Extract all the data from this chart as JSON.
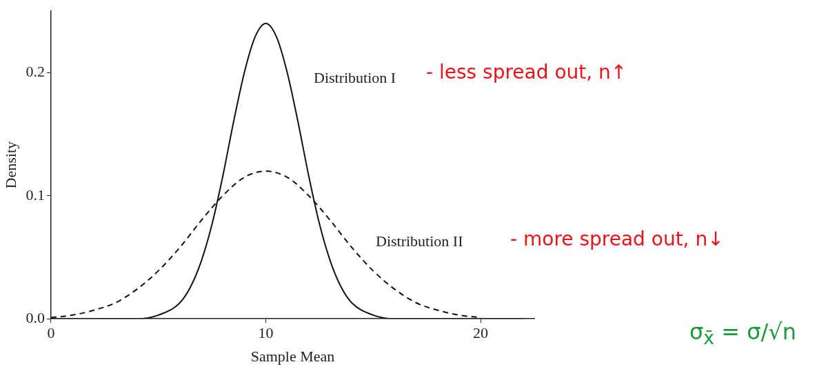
{
  "chart_data": {
    "type": "line",
    "xlabel": "Sample Mean",
    "ylabel": "Density",
    "xlim": [
      0,
      22.5
    ],
    "xticks": [
      0,
      10,
      20
    ],
    "ylim": [
      0,
      0.25
    ],
    "yticks": [
      {
        "value": 0,
        "label": "0.0"
      },
      {
        "value": 0.1,
        "label": "0.1"
      },
      {
        "value": 0.2,
        "label": "0.2"
      }
    ],
    "grid": false,
    "legend": false,
    "marker": "none",
    "series": [
      {
        "color": "#111111",
        "line_style": "solid",
        "x": [
          0,
          2,
          4,
          5,
          6,
          6.5,
          7,
          7.5,
          8,
          8.5,
          9,
          9.5,
          10,
          10.5,
          11,
          11.5,
          12,
          12.5,
          13,
          13.5,
          14,
          15,
          16,
          18,
          20,
          22
        ],
        "values": [
          0,
          0,
          0,
          0.003,
          0.013,
          0.026,
          0.047,
          0.077,
          0.116,
          0.16,
          0.2,
          0.229,
          0.24,
          0.229,
          0.2,
          0.16,
          0.116,
          0.077,
          0.047,
          0.026,
          0.013,
          0.003,
          0,
          0,
          0,
          0
        ]
      },
      {
        "color": "#111111",
        "line_style": "dashed",
        "x": [
          0,
          1,
          2,
          3,
          4,
          5,
          6,
          7,
          8,
          9,
          10,
          11,
          12,
          13,
          14,
          15,
          16,
          17,
          18,
          19,
          20
        ],
        "values": [
          0.001,
          0.003,
          0.007,
          0.013,
          0.024,
          0.039,
          0.058,
          0.08,
          0.1,
          0.115,
          0.12,
          0.115,
          0.1,
          0.08,
          0.058,
          0.039,
          0.024,
          0.013,
          0.007,
          0.003,
          0.001
        ]
      }
    ],
    "annotations": [
      "Distribution I",
      "Distribution II",
      "- less spread out, n↑",
      "- more spread out, n↓",
      "σ$_{x̄}$ = σ/√n"
    ]
  }
}
